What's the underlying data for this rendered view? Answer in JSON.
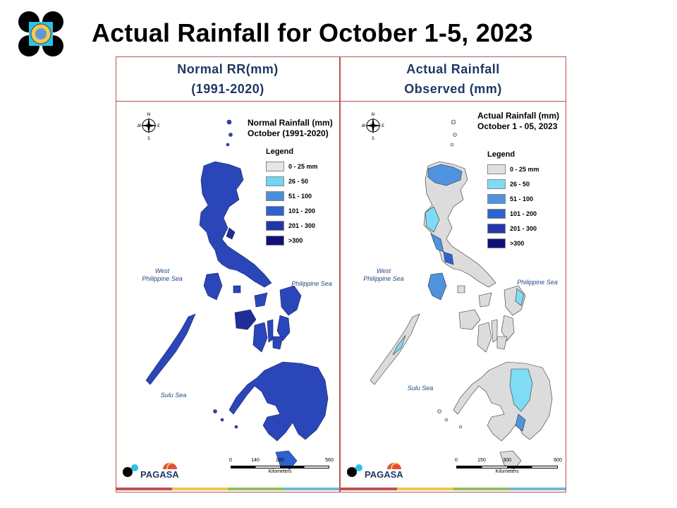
{
  "slide": {
    "title": "Actual Rainfall for October 1-5, 2023"
  },
  "panels": [
    {
      "header_line1": "Normal RR(mm)",
      "header_line2": "(1991-2020)",
      "map_title_line1": "Normal Rainfall (mm)",
      "map_title_line2": "October (1991-2020)",
      "legend_title": "Legend",
      "legend": [
        {
          "label": "0 - 25 mm",
          "color": "#e6e6e6"
        },
        {
          "label": "26 - 50",
          "color": "#6fd7f2"
        },
        {
          "label": "51 - 100",
          "color": "#4a8fdc"
        },
        {
          "label": "101 - 200",
          "color": "#2f62d0"
        },
        {
          "label": "201 - 300",
          "color": "#2238a8"
        },
        {
          "label": ">300",
          "color": "#10107a"
        }
      ],
      "sea_west_line1": "West",
      "sea_west_line2": "Philippine Sea",
      "sea_east": "Philippine Sea",
      "sea_south": "Sulu Sea",
      "scale_ticks": [
        "0",
        "140",
        "280",
        "560"
      ],
      "scale_unit": "Kilometers"
    },
    {
      "header_line1": "Actual Rainfall",
      "header_line2": "Observed (mm)",
      "map_title_line1": "Actual Rainfall (mm)",
      "map_title_line2": "October 1 - 05, 2023",
      "legend_title": "Legend",
      "legend": [
        {
          "label": "0 - 25 mm",
          "color": "#e0e0e0"
        },
        {
          "label": "26 - 50",
          "color": "#7fdcf5"
        },
        {
          "label": "51 - 100",
          "color": "#4f93df"
        },
        {
          "label": "101 - 200",
          "color": "#2f62d0"
        },
        {
          "label": "201 - 300",
          "color": "#2238a8"
        },
        {
          "label": ">300",
          "color": "#10107a"
        }
      ],
      "sea_west_line1": "West",
      "sea_west_line2": "Philippine Sea",
      "sea_east": "Philippine Sea",
      "sea_south": "Sulu Sea",
      "scale_ticks": [
        "0",
        "150",
        "300",
        "600"
      ],
      "scale_unit": "Kilometers"
    }
  ],
  "compass": {
    "n": "N",
    "s": "S",
    "e": "E",
    "w": "W"
  },
  "pagasa_logo_text": "PAGASA",
  "colors": {
    "frame": "#c0504d",
    "header_text": "#1f3864",
    "sea_text": "#1f497d",
    "normal_fill": "#2a46b8",
    "normal_dark": "#1f2f9a",
    "actual_fill": "#dcdcdc",
    "actual_light_blue": "#7fdcf5",
    "actual_mid_blue": "#4f93df"
  },
  "strip_colors": [
    "#c0504d",
    "#e6c84f",
    "#8fbf5a",
    "#6fb6d9"
  ]
}
